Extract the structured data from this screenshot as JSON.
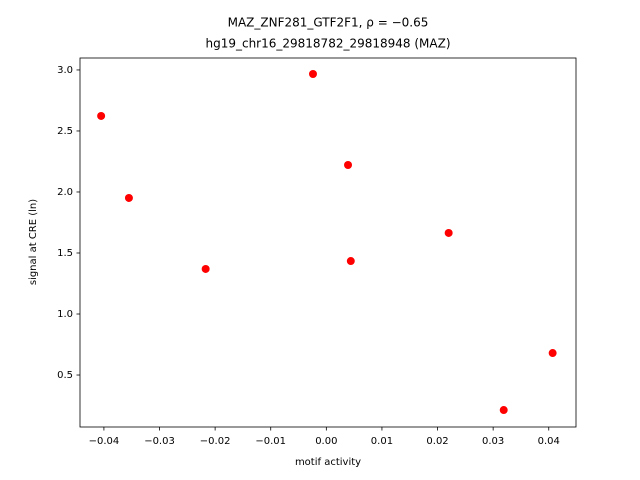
{
  "chart_data": {
    "type": "scatter",
    "title": "MAZ_ZNF281_GTF2F1, ρ = −0.65",
    "subtitle": "hg19_chr16_29818782_29818948 (MAZ)",
    "x_label": "motif activity",
    "y_label": "signal at CRE (ln)",
    "color": "#ff0000",
    "x": [
      -0.0405,
      -0.0355,
      -0.0217,
      -0.0024,
      0.0039,
      0.0044,
      0.022,
      0.0319,
      0.0407
    ],
    "values": [
      2.623,
      1.951,
      1.369,
      2.967,
      2.221,
      1.434,
      1.664,
      0.213,
      0.68
    ],
    "xlim": [
      -0.0443,
      0.0449
    ],
    "ylim": [
      0.074,
      3.098
    ],
    "xticks": [
      {
        "value": -0.04,
        "label": "−0.04"
      },
      {
        "value": -0.03,
        "label": "−0.03"
      },
      {
        "value": -0.02,
        "label": "−0.02"
      },
      {
        "value": -0.01,
        "label": "−0.01"
      },
      {
        "value": 0,
        "label": "0.00"
      },
      {
        "value": 0.01,
        "label": "0.01"
      },
      {
        "value": 0.02,
        "label": "0.02"
      },
      {
        "value": 0.03,
        "label": "0.03"
      },
      {
        "value": 0.04,
        "label": "0.04"
      }
    ],
    "yticks": [
      0.5,
      {
        "value": 1,
        "label": "1.0"
      },
      1.5,
      {
        "value": 2,
        "label": "2.0"
      },
      2.5,
      {
        "value": 3,
        "label": "3.0"
      }
    ],
    "grid": false
  }
}
